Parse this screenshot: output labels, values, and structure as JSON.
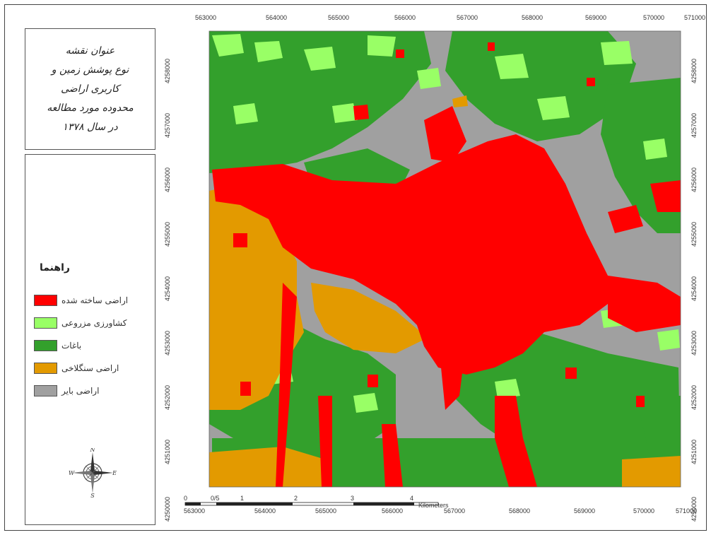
{
  "title": {
    "lines": [
      "عنوان نقشه",
      "نوع پوشش زمین و",
      "کاربری اراضی",
      "محدوده مورد مطالعه",
      "در سال ۱۳۷۸"
    ]
  },
  "legend": {
    "heading": "راهنما",
    "items": [
      {
        "label": "اراضی ساخته شده",
        "color": "#ff0000"
      },
      {
        "label": "کشاورزی مزروعی",
        "color": "#99ff66"
      },
      {
        "label": "باغات",
        "color": "#33a02c"
      },
      {
        "label": "اراضی سنگلاخی",
        "color": "#e39a00"
      },
      {
        "label": "اراضی بایر",
        "color": "#a0a0a0"
      }
    ]
  },
  "compass": {
    "north": "N",
    "south": "S",
    "east": "E",
    "west": "W"
  },
  "axes": {
    "x_ticks": [
      "563000",
      "564000",
      "565000",
      "566000",
      "567000",
      "568000",
      "569000",
      "570000",
      "571000"
    ],
    "y_ticks": [
      "4258000",
      "4257000",
      "4256000",
      "4255000",
      "4254000",
      "4253000",
      "4252000",
      "4251000",
      "4250000"
    ]
  },
  "scale_bar": {
    "labels": [
      "0",
      "0/5",
      "1",
      "2",
      "3",
      "4"
    ],
    "unit": "Kilometers"
  },
  "colors": {
    "built": "#ff0000",
    "agri": "#99ff66",
    "orchard": "#33a02c",
    "rocky": "#e39a00",
    "barren": "#a0a0a0"
  }
}
